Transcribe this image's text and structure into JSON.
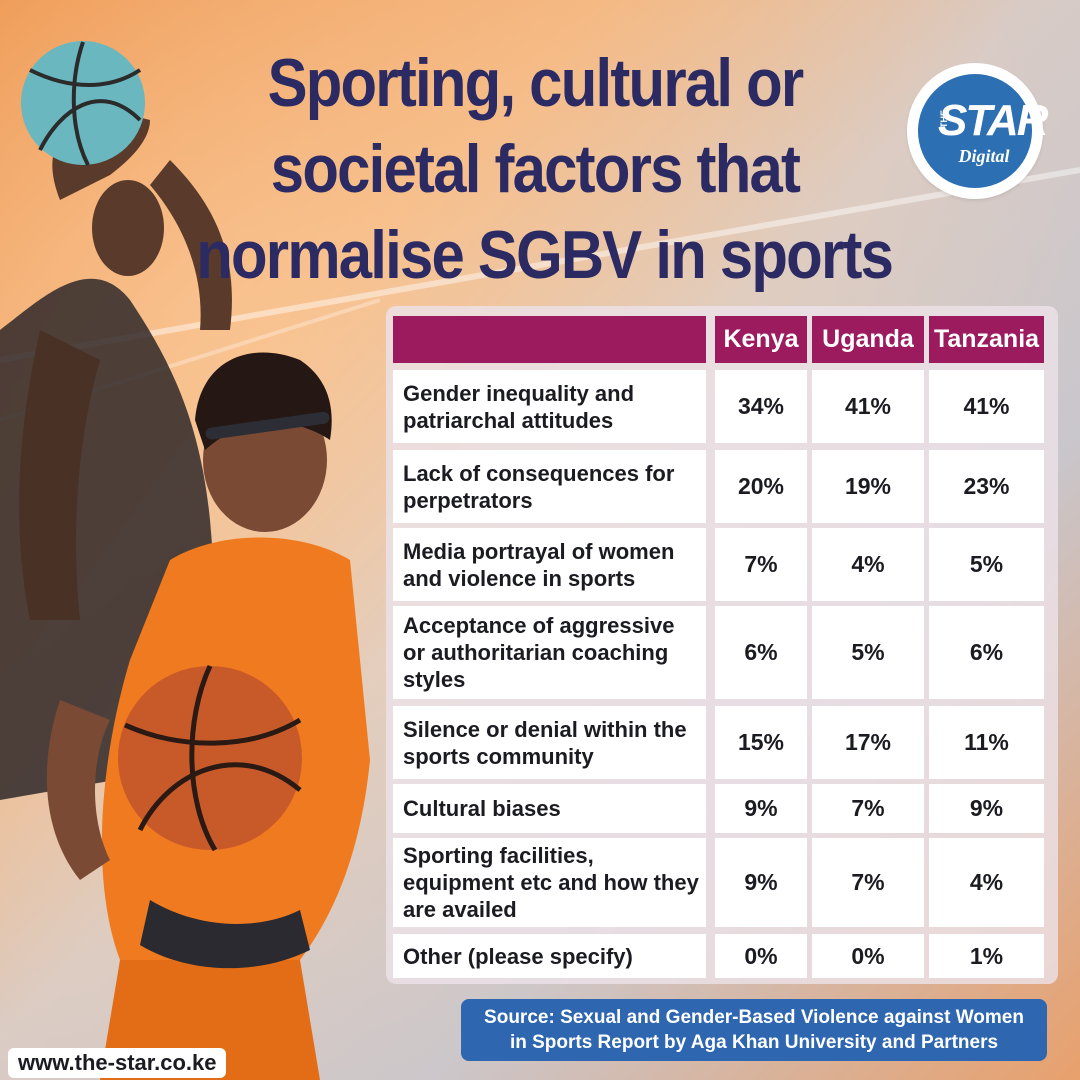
{
  "title_lines": [
    "Sporting, cultural or",
    "societal factors that",
    "normalise SGBV in sports"
  ],
  "logo": {
    "small": "THE",
    "main": "STAR",
    "sub": "Digital"
  },
  "colors": {
    "header_bg": "#9c1a5e",
    "title": "#2b2a63",
    "source_bg": "#2e66b0"
  },
  "chart_data": {
    "type": "table",
    "columns": [
      "Kenya",
      "Uganda",
      "Tanzania"
    ],
    "rows": [
      {
        "label": "Gender inequality and patriarchal attitudes",
        "values": [
          "34%",
          "41%",
          "41%"
        ]
      },
      {
        "label": "Lack of consequences for perpetrators",
        "values": [
          "20%",
          "19%",
          "23%"
        ]
      },
      {
        "label": "Media portrayal of women and violence in sports",
        "values": [
          "7%",
          "4%",
          "5%"
        ]
      },
      {
        "label": "Acceptance of aggressive or authoritarian coaching styles",
        "values": [
          "6%",
          "5%",
          "6%"
        ]
      },
      {
        "label": "Silence or denial within the sports community",
        "values": [
          "15%",
          "17%",
          "11%"
        ]
      },
      {
        "label": "Cultural biases",
        "values": [
          "9%",
          "7%",
          "9%"
        ]
      },
      {
        "label": "Sporting facilities, equipment etc and how they are availed",
        "values": [
          "9%",
          "7%",
          "4%"
        ]
      },
      {
        "label": "Other (please specify)",
        "values": [
          "0%",
          "0%",
          "1%"
        ]
      }
    ]
  },
  "source_lines": [
    "Source: Sexual and Gender-Based Violence against Women",
    "in Sports Report by Aga Khan University and Partners"
  ],
  "website": "www.the-star.co.ke"
}
